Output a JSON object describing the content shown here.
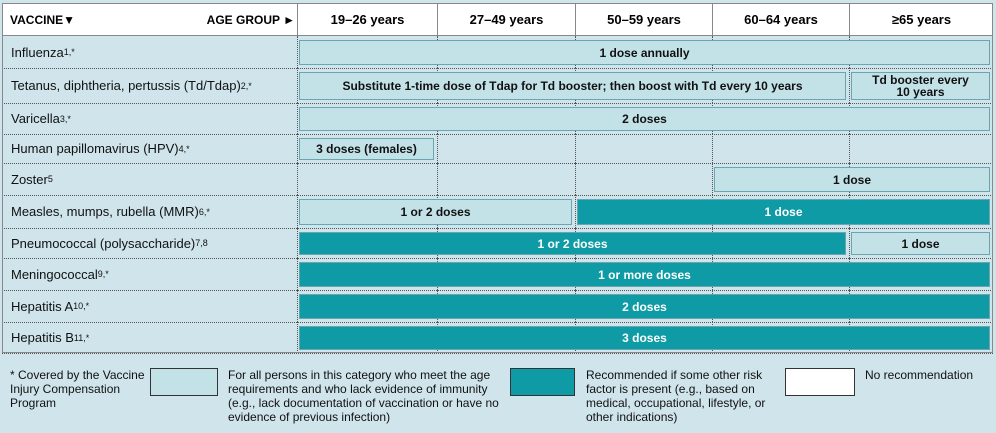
{
  "header": {
    "vaccine": "VACCINE▼",
    "age_group": "AGE GROUP ►",
    "ages": [
      "19–26 years",
      "27–49 years",
      "50–59 years",
      "60–64 years",
      "≥65 years"
    ]
  },
  "rows": [
    {
      "name": "Influenza",
      "sup": "1,*",
      "bars": [
        {
          "text": "1 dose annually",
          "start": 0,
          "span": 5,
          "legend": 0
        }
      ]
    },
    {
      "name": "Tetanus, diphtheria, pertussis (Td/Tdap)",
      "sup": "2,*",
      "bars": [
        {
          "text": "Substitute 1-time dose of Tdap for Td booster; then boost with Td every 10 years",
          "start": 0,
          "span": 4,
          "legend": 0
        },
        {
          "text": "Td booster every 10 years",
          "start": 4,
          "span": 1,
          "legend": 0
        }
      ]
    },
    {
      "name": "Varicella",
      "sup": "3,*",
      "bars": [
        {
          "text": "2 doses",
          "start": 0,
          "span": 5,
          "legend": 0
        }
      ]
    },
    {
      "name": "Human papillomavirus (HPV)",
      "sup": "4,*",
      "bars": [
        {
          "text": "3 doses (females)",
          "start": 0,
          "span": 1,
          "legend": 0
        }
      ]
    },
    {
      "name": "Zoster",
      "sup": "5",
      "bars": [
        {
          "text": "1 dose",
          "start": 3,
          "span": 2,
          "legend": 0
        }
      ]
    },
    {
      "name": "Measles, mumps, rubella (MMR)",
      "sup": "6,*",
      "bars": [
        {
          "text": "1 or 2 doses",
          "start": 0,
          "span": 2,
          "legend": 0
        },
        {
          "text": "1 dose",
          "start": 2,
          "span": 3,
          "legend": 1
        }
      ]
    },
    {
      "name": "Pneumococcal (polysaccharide)",
      "sup": "7,8",
      "bars": [
        {
          "text": "1 or 2 doses",
          "start": 0,
          "span": 4,
          "legend": 1
        },
        {
          "text": "1 dose",
          "start": 4,
          "span": 1,
          "legend": 0
        }
      ]
    },
    {
      "name": "Meningococcal",
      "sup": "9,*",
      "bars": [
        {
          "text": "1 or more doses",
          "start": 0,
          "span": 5,
          "legend": 1
        }
      ]
    },
    {
      "name": "Hepatitis A",
      "sup": "10,*",
      "bars": [
        {
          "text": "2 doses",
          "start": 0,
          "span": 5,
          "legend": 1
        }
      ]
    },
    {
      "name": "Hepatitis B",
      "sup": "11,*",
      "bars": [
        {
          "text": "3 doses",
          "start": 0,
          "span": 5,
          "legend": 1
        }
      ]
    }
  ],
  "footnote": "* Covered by the Vaccine Injury Compensation Program",
  "legend": [
    {
      "text": "For all persons in this category who meet the age requirements and who lack evidence of immunity (e.g., lack documentation of vaccination or have no evidence of previous infection)",
      "color": "#c3e2e8"
    },
    {
      "text": "Recommended if some other risk factor is present (e.g., based on medical, occupational, lifestyle, or other indications)",
      "color": "#0e9ba6"
    },
    {
      "text": "No recommendation",
      "color": "#ffffff"
    }
  ]
}
